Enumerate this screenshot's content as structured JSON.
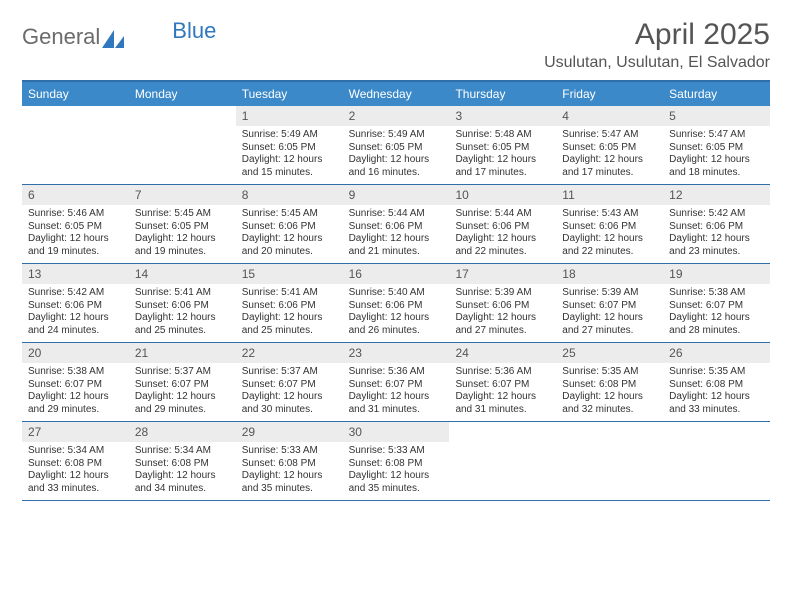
{
  "brand": {
    "part1": "General",
    "part2": "Blue"
  },
  "title": "April 2025",
  "location": "Usulutan, Usulutan, El Salvador",
  "colors": {
    "header_bg": "#3b89c9",
    "header_text": "#ffffff",
    "border": "#2f6ea8",
    "daynum_bg": "#ececec",
    "text": "#333333",
    "title_text": "#555555"
  },
  "weekdays": [
    "Sunday",
    "Monday",
    "Tuesday",
    "Wednesday",
    "Thursday",
    "Friday",
    "Saturday"
  ],
  "weeks": [
    [
      {
        "n": "",
        "sr": "",
        "ss": "",
        "dl": ""
      },
      {
        "n": "",
        "sr": "",
        "ss": "",
        "dl": ""
      },
      {
        "n": "1",
        "sr": "Sunrise: 5:49 AM",
        "ss": "Sunset: 6:05 PM",
        "dl": "Daylight: 12 hours and 15 minutes."
      },
      {
        "n": "2",
        "sr": "Sunrise: 5:49 AM",
        "ss": "Sunset: 6:05 PM",
        "dl": "Daylight: 12 hours and 16 minutes."
      },
      {
        "n": "3",
        "sr": "Sunrise: 5:48 AM",
        "ss": "Sunset: 6:05 PM",
        "dl": "Daylight: 12 hours and 17 minutes."
      },
      {
        "n": "4",
        "sr": "Sunrise: 5:47 AM",
        "ss": "Sunset: 6:05 PM",
        "dl": "Daylight: 12 hours and 17 minutes."
      },
      {
        "n": "5",
        "sr": "Sunrise: 5:47 AM",
        "ss": "Sunset: 6:05 PM",
        "dl": "Daylight: 12 hours and 18 minutes."
      }
    ],
    [
      {
        "n": "6",
        "sr": "Sunrise: 5:46 AM",
        "ss": "Sunset: 6:05 PM",
        "dl": "Daylight: 12 hours and 19 minutes."
      },
      {
        "n": "7",
        "sr": "Sunrise: 5:45 AM",
        "ss": "Sunset: 6:05 PM",
        "dl": "Daylight: 12 hours and 19 minutes."
      },
      {
        "n": "8",
        "sr": "Sunrise: 5:45 AM",
        "ss": "Sunset: 6:06 PM",
        "dl": "Daylight: 12 hours and 20 minutes."
      },
      {
        "n": "9",
        "sr": "Sunrise: 5:44 AM",
        "ss": "Sunset: 6:06 PM",
        "dl": "Daylight: 12 hours and 21 minutes."
      },
      {
        "n": "10",
        "sr": "Sunrise: 5:44 AM",
        "ss": "Sunset: 6:06 PM",
        "dl": "Daylight: 12 hours and 22 minutes."
      },
      {
        "n": "11",
        "sr": "Sunrise: 5:43 AM",
        "ss": "Sunset: 6:06 PM",
        "dl": "Daylight: 12 hours and 22 minutes."
      },
      {
        "n": "12",
        "sr": "Sunrise: 5:42 AM",
        "ss": "Sunset: 6:06 PM",
        "dl": "Daylight: 12 hours and 23 minutes."
      }
    ],
    [
      {
        "n": "13",
        "sr": "Sunrise: 5:42 AM",
        "ss": "Sunset: 6:06 PM",
        "dl": "Daylight: 12 hours and 24 minutes."
      },
      {
        "n": "14",
        "sr": "Sunrise: 5:41 AM",
        "ss": "Sunset: 6:06 PM",
        "dl": "Daylight: 12 hours and 25 minutes."
      },
      {
        "n": "15",
        "sr": "Sunrise: 5:41 AM",
        "ss": "Sunset: 6:06 PM",
        "dl": "Daylight: 12 hours and 25 minutes."
      },
      {
        "n": "16",
        "sr": "Sunrise: 5:40 AM",
        "ss": "Sunset: 6:06 PM",
        "dl": "Daylight: 12 hours and 26 minutes."
      },
      {
        "n": "17",
        "sr": "Sunrise: 5:39 AM",
        "ss": "Sunset: 6:06 PM",
        "dl": "Daylight: 12 hours and 27 minutes."
      },
      {
        "n": "18",
        "sr": "Sunrise: 5:39 AM",
        "ss": "Sunset: 6:07 PM",
        "dl": "Daylight: 12 hours and 27 minutes."
      },
      {
        "n": "19",
        "sr": "Sunrise: 5:38 AM",
        "ss": "Sunset: 6:07 PM",
        "dl": "Daylight: 12 hours and 28 minutes."
      }
    ],
    [
      {
        "n": "20",
        "sr": "Sunrise: 5:38 AM",
        "ss": "Sunset: 6:07 PM",
        "dl": "Daylight: 12 hours and 29 minutes."
      },
      {
        "n": "21",
        "sr": "Sunrise: 5:37 AM",
        "ss": "Sunset: 6:07 PM",
        "dl": "Daylight: 12 hours and 29 minutes."
      },
      {
        "n": "22",
        "sr": "Sunrise: 5:37 AM",
        "ss": "Sunset: 6:07 PM",
        "dl": "Daylight: 12 hours and 30 minutes."
      },
      {
        "n": "23",
        "sr": "Sunrise: 5:36 AM",
        "ss": "Sunset: 6:07 PM",
        "dl": "Daylight: 12 hours and 31 minutes."
      },
      {
        "n": "24",
        "sr": "Sunrise: 5:36 AM",
        "ss": "Sunset: 6:07 PM",
        "dl": "Daylight: 12 hours and 31 minutes."
      },
      {
        "n": "25",
        "sr": "Sunrise: 5:35 AM",
        "ss": "Sunset: 6:08 PM",
        "dl": "Daylight: 12 hours and 32 minutes."
      },
      {
        "n": "26",
        "sr": "Sunrise: 5:35 AM",
        "ss": "Sunset: 6:08 PM",
        "dl": "Daylight: 12 hours and 33 minutes."
      }
    ],
    [
      {
        "n": "27",
        "sr": "Sunrise: 5:34 AM",
        "ss": "Sunset: 6:08 PM",
        "dl": "Daylight: 12 hours and 33 minutes."
      },
      {
        "n": "28",
        "sr": "Sunrise: 5:34 AM",
        "ss": "Sunset: 6:08 PM",
        "dl": "Daylight: 12 hours and 34 minutes."
      },
      {
        "n": "29",
        "sr": "Sunrise: 5:33 AM",
        "ss": "Sunset: 6:08 PM",
        "dl": "Daylight: 12 hours and 35 minutes."
      },
      {
        "n": "30",
        "sr": "Sunrise: 5:33 AM",
        "ss": "Sunset: 6:08 PM",
        "dl": "Daylight: 12 hours and 35 minutes."
      },
      {
        "n": "",
        "sr": "",
        "ss": "",
        "dl": ""
      },
      {
        "n": "",
        "sr": "",
        "ss": "",
        "dl": ""
      },
      {
        "n": "",
        "sr": "",
        "ss": "",
        "dl": ""
      }
    ]
  ]
}
